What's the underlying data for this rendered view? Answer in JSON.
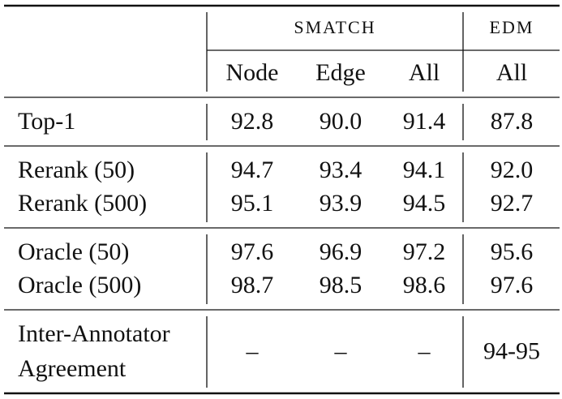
{
  "table": {
    "header": {
      "groups": [
        "SMATCH",
        "EDM"
      ],
      "columns": [
        "Node",
        "Edge",
        "All",
        "All"
      ]
    },
    "groups": [
      [
        {
          "label": [
            "Top-1"
          ],
          "cells": [
            "92.8",
            "90.0",
            "91.4",
            "87.8"
          ]
        }
      ],
      [
        {
          "label": [
            "Rerank (50)"
          ],
          "cells": [
            "94.7",
            "93.4",
            "94.1",
            "92.0"
          ]
        },
        {
          "label": [
            "Rerank (500)"
          ],
          "cells": [
            "95.1",
            "93.9",
            "94.5",
            "92.7"
          ]
        }
      ],
      [
        {
          "label": [
            "Oracle (50)"
          ],
          "cells": [
            "97.6",
            "96.9",
            "97.2",
            "95.6"
          ]
        },
        {
          "label": [
            "Oracle (500)"
          ],
          "cells": [
            "98.7",
            "98.5",
            "98.6",
            "97.6"
          ]
        }
      ],
      [
        {
          "label": [
            "Inter-Annotator",
            "Agreement"
          ],
          "cells": [
            "–",
            "–",
            "–",
            "94-95"
          ]
        }
      ]
    ]
  }
}
